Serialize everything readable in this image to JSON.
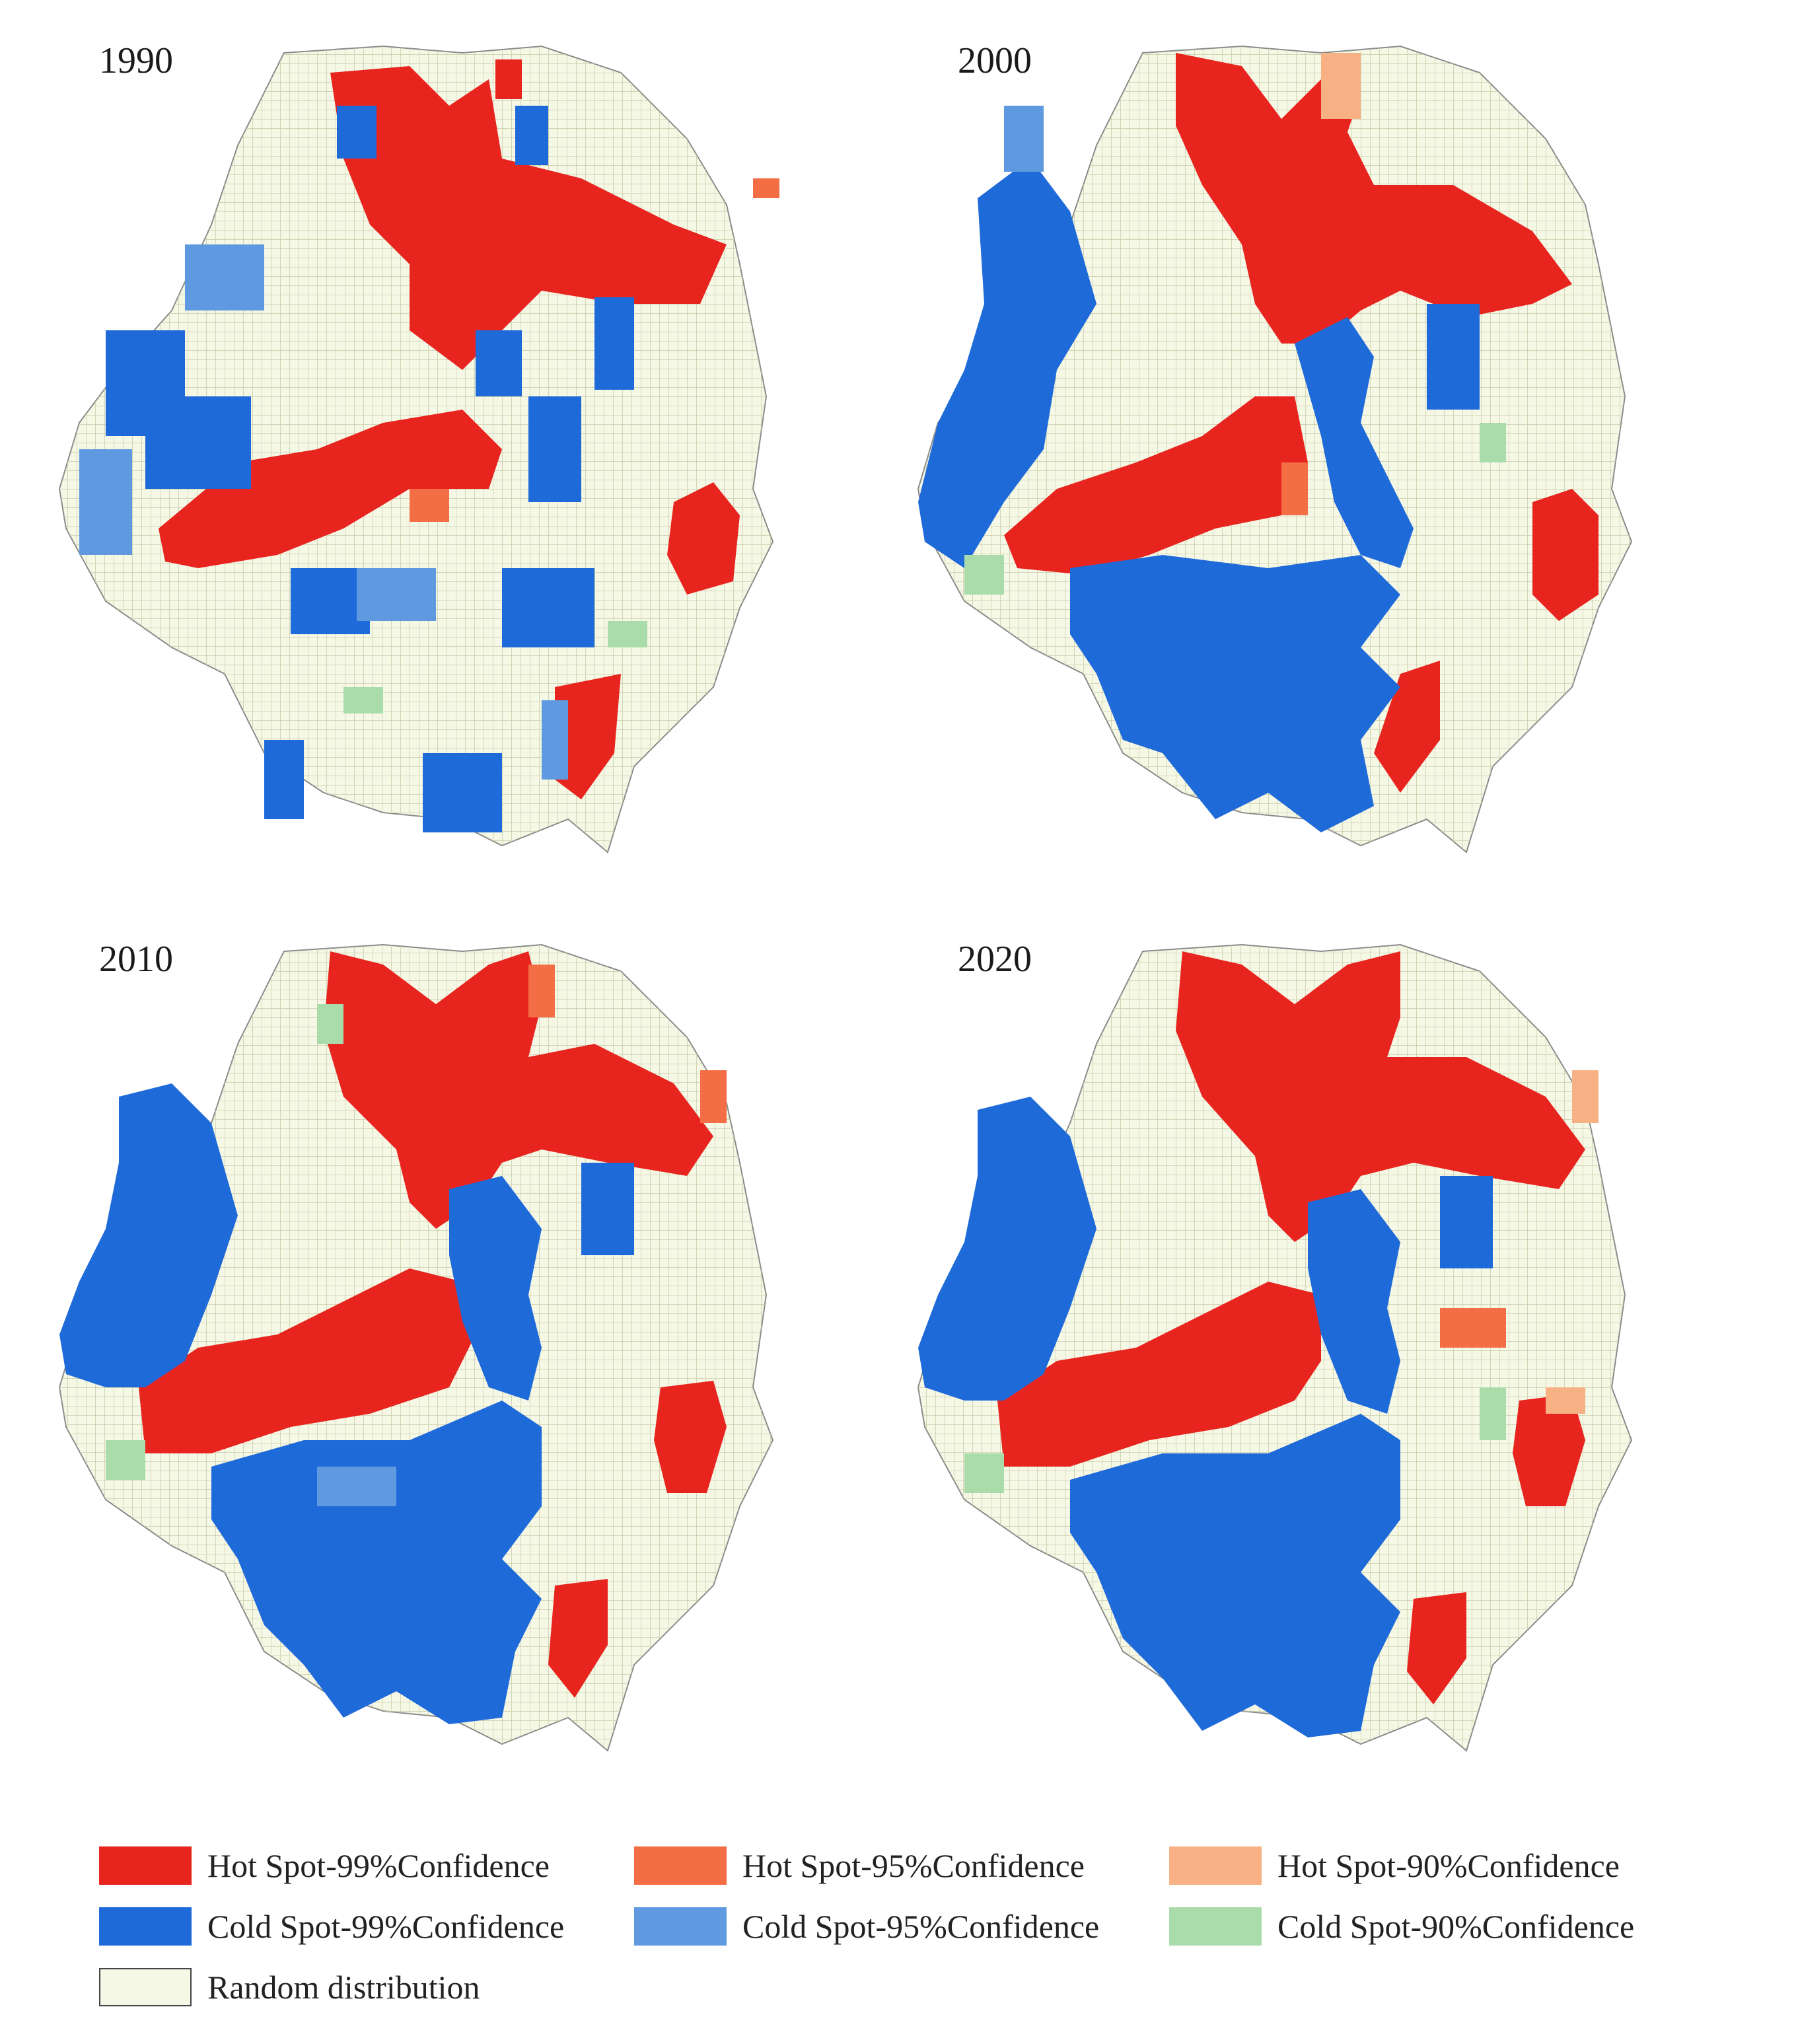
{
  "panels": [
    {
      "year": "1990"
    },
    {
      "year": "2000"
    },
    {
      "year": "2010"
    },
    {
      "year": "2020"
    }
  ],
  "legend": [
    {
      "label": "Hot Spot-99%Confidence",
      "color": "#e8241f"
    },
    {
      "label": "Hot Spot-95%Confidence",
      "color": "#f36d45"
    },
    {
      "label": "Hot Spot-90%Confidence",
      "color": "#f7b184"
    },
    {
      "label": "Cold Spot-99%Confidence",
      "color": "#1f6ad9"
    },
    {
      "label": "Cold Spot-95%Confidence",
      "color": "#5f9ae0"
    },
    {
      "label": "Cold Spot-90%Confidence",
      "color": "#a9dcaa"
    },
    {
      "label": "Random distribution",
      "color": "#f6f8e6"
    }
  ],
  "colors": {
    "background": "#ffffff",
    "grid_line": "#c8cba8",
    "coast_line": "#8a8a8a"
  }
}
